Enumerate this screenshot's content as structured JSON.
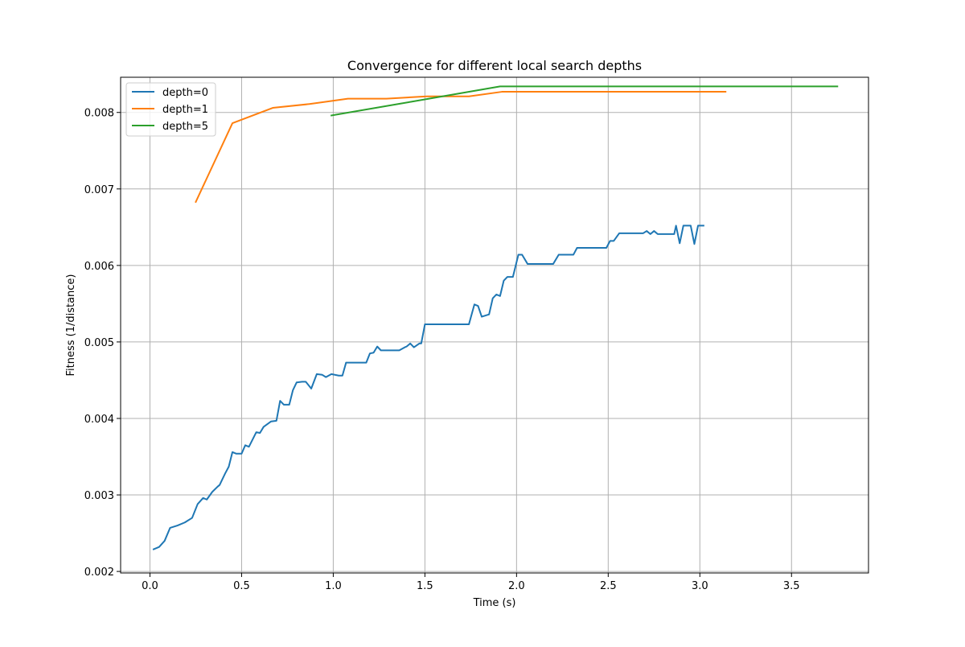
{
  "chart_data": {
    "type": "line",
    "title": "Convergence for different local search depths",
    "xlabel": "Time (s)",
    "ylabel": "Fitness (1/distance)",
    "xlim": [
      -0.16,
      3.92
    ],
    "ylim": [
      0.00198,
      0.00846
    ],
    "xticks": [
      0.0,
      0.5,
      1.0,
      1.5,
      2.0,
      2.5,
      3.0,
      3.5
    ],
    "xtick_labels": [
      "0.0",
      "0.5",
      "1.0",
      "1.5",
      "2.0",
      "2.5",
      "3.0",
      "3.5"
    ],
    "yticks": [
      0.002,
      0.003,
      0.004,
      0.005,
      0.006,
      0.007,
      0.008
    ],
    "ytick_labels": [
      "0.002",
      "0.003",
      "0.004",
      "0.005",
      "0.006",
      "0.007",
      "0.008"
    ],
    "grid": true,
    "legend_position": "top-left",
    "series": [
      {
        "name": "depth=0",
        "color": "#1f77b4",
        "points": [
          [
            0.02,
            0.00229
          ],
          [
            0.05,
            0.00232
          ],
          [
            0.08,
            0.0024
          ],
          [
            0.11,
            0.00257
          ],
          [
            0.15,
            0.0026
          ],
          [
            0.19,
            0.00264
          ],
          [
            0.23,
            0.0027
          ],
          [
            0.26,
            0.00288
          ],
          [
            0.29,
            0.00296
          ],
          [
            0.31,
            0.00294
          ],
          [
            0.34,
            0.00304
          ],
          [
            0.37,
            0.00311
          ],
          [
            0.38,
            0.00313
          ],
          [
            0.41,
            0.00328
          ],
          [
            0.43,
            0.00337
          ],
          [
            0.45,
            0.00356
          ],
          [
            0.47,
            0.00354
          ],
          [
            0.5,
            0.00354
          ],
          [
            0.52,
            0.00365
          ],
          [
            0.54,
            0.00363
          ],
          [
            0.58,
            0.00382
          ],
          [
            0.6,
            0.00381
          ],
          [
            0.62,
            0.00389
          ],
          [
            0.66,
            0.00396
          ],
          [
            0.69,
            0.00397
          ],
          [
            0.71,
            0.00423
          ],
          [
            0.73,
            0.00418
          ],
          [
            0.76,
            0.00418
          ],
          [
            0.78,
            0.00437
          ],
          [
            0.8,
            0.00447
          ],
          [
            0.83,
            0.00448
          ],
          [
            0.85,
            0.00448
          ],
          [
            0.88,
            0.00439
          ],
          [
            0.91,
            0.00458
          ],
          [
            0.94,
            0.00457
          ],
          [
            0.96,
            0.00454
          ],
          [
            0.99,
            0.00458
          ],
          [
            1.03,
            0.00456
          ],
          [
            1.05,
            0.00456
          ],
          [
            1.07,
            0.00473
          ],
          [
            1.18,
            0.00473
          ],
          [
            1.2,
            0.00485
          ],
          [
            1.22,
            0.00486
          ],
          [
            1.24,
            0.00494
          ],
          [
            1.26,
            0.00489
          ],
          [
            1.36,
            0.00489
          ],
          [
            1.39,
            0.00493
          ],
          [
            1.4,
            0.00494
          ],
          [
            1.42,
            0.00498
          ],
          [
            1.44,
            0.00493
          ],
          [
            1.47,
            0.00498
          ],
          [
            1.48,
            0.00498
          ],
          [
            1.5,
            0.00523
          ],
          [
            1.74,
            0.00523
          ],
          [
            1.77,
            0.00549
          ],
          [
            1.79,
            0.00547
          ],
          [
            1.81,
            0.00533
          ],
          [
            1.85,
            0.00536
          ],
          [
            1.87,
            0.00557
          ],
          [
            1.89,
            0.00562
          ],
          [
            1.91,
            0.0056
          ],
          [
            1.93,
            0.0058
          ],
          [
            1.95,
            0.00585
          ],
          [
            1.98,
            0.00585
          ],
          [
            2.01,
            0.00614
          ],
          [
            2.03,
            0.00614
          ],
          [
            2.06,
            0.00602
          ],
          [
            2.2,
            0.00602
          ],
          [
            2.23,
            0.00614
          ],
          [
            2.31,
            0.00614
          ],
          [
            2.33,
            0.00623
          ],
          [
            2.49,
            0.00623
          ],
          [
            2.51,
            0.00632
          ],
          [
            2.53,
            0.00632
          ],
          [
            2.56,
            0.00642
          ],
          [
            2.69,
            0.00642
          ],
          [
            2.71,
            0.00645
          ],
          [
            2.73,
            0.00641
          ],
          [
            2.75,
            0.00645
          ],
          [
            2.77,
            0.00641
          ],
          [
            2.86,
            0.00641
          ],
          [
            2.87,
            0.00652
          ],
          [
            2.89,
            0.00629
          ],
          [
            2.91,
            0.00652
          ],
          [
            2.95,
            0.00652
          ],
          [
            2.97,
            0.00628
          ],
          [
            2.99,
            0.00652
          ],
          [
            3.02,
            0.00652
          ]
        ]
      },
      {
        "name": "depth=1",
        "color": "#ff7f0e",
        "points": [
          [
            0.25,
            0.00683
          ],
          [
            0.45,
            0.00786
          ],
          [
            0.67,
            0.00806
          ],
          [
            0.87,
            0.00811
          ],
          [
            1.08,
            0.00818
          ],
          [
            1.29,
            0.00818
          ],
          [
            1.51,
            0.00821
          ],
          [
            1.74,
            0.00821
          ],
          [
            1.92,
            0.00827
          ],
          [
            3.14,
            0.00827
          ]
        ]
      },
      {
        "name": "depth=5",
        "color": "#2ca02c",
        "points": [
          [
            0.99,
            0.00796
          ],
          [
            1.91,
            0.00834
          ],
          [
            3.75,
            0.00834
          ]
        ]
      }
    ]
  }
}
